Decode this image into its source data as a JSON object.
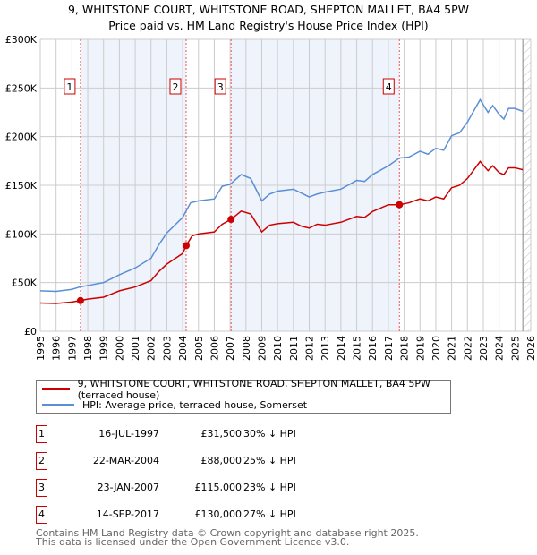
{
  "title_line1": "9, WHITSTONE COURT, WHITSTONE ROAD, SHEPTON MALLET, BA4 5PW",
  "title_line2": "Price paid vs. HM Land Registry's House Price Index (HPI)",
  "chart_data": {
    "type": "line",
    "xlim": [
      1995,
      2026
    ],
    "ylim": [
      0,
      300000
    ],
    "y_ticks": [
      {
        "v": 0,
        "label": "£0"
      },
      {
        "v": 50000,
        "label": "£50K"
      },
      {
        "v": 100000,
        "label": "£100K"
      },
      {
        "v": 150000,
        "label": "£150K"
      },
      {
        "v": 200000,
        "label": "£200K"
      },
      {
        "v": 250000,
        "label": "£250K"
      },
      {
        "v": 300000,
        "label": "£300K"
      }
    ],
    "x_ticks": [
      "1995",
      "1996",
      "1997",
      "1998",
      "1999",
      "2000",
      "2001",
      "2002",
      "2003",
      "2004",
      "2005",
      "2006",
      "2007",
      "2008",
      "2009",
      "2010",
      "2011",
      "2012",
      "2013",
      "2014",
      "2015",
      "2016",
      "2017",
      "2018",
      "2019",
      "2020",
      "2021",
      "2022",
      "2023",
      "2024",
      "2025",
      "2026"
    ],
    "grid": true,
    "series": [
      {
        "name": "9, WHITSTONE COURT, WHITSTONE ROAD, SHEPTON MALLET, BA4 5PW (terraced house)",
        "color": "#cc0000",
        "x": [
          1995,
          1996,
          1997,
          1997.54,
          1998,
          1999,
          2000,
          2001,
          2002,
          2002.5,
          2003,
          2004,
          2004.22,
          2004.6,
          2005,
          2006,
          2006.5,
          2007.06,
          2007.7,
          2008.3,
          2009,
          2009.5,
          2010,
          2011,
          2011.5,
          2012,
          2012.5,
          2013,
          2014,
          2015,
          2015.5,
          2016,
          2017,
          2017.7,
          2018.3,
          2019,
          2019.5,
          2020,
          2020.5,
          2021,
          2021.5,
          2022,
          2022.8,
          2023.3,
          2023.6,
          2024,
          2024.3,
          2024.6,
          2025,
          2025.5
        ],
        "y": [
          29000,
          28500,
          30000,
          31500,
          33000,
          35000,
          41500,
          45500,
          52000,
          61500,
          69000,
          80000,
          88000,
          98000,
          100000,
          102000,
          110000,
          115000,
          123500,
          120500,
          102000,
          109000,
          110500,
          112000,
          108000,
          106000,
          110000,
          109000,
          112000,
          118000,
          117000,
          123000,
          130000,
          130000,
          132000,
          136000,
          134000,
          138000,
          136000,
          147500,
          150000,
          157000,
          174500,
          165000,
          170000,
          163000,
          161000,
          168000,
          168000,
          166000
        ]
      },
      {
        "name": "HPI: Average price, terraced house, Somerset",
        "color": "#5b8fd4",
        "x": [
          1995,
          1996,
          1997,
          1997.5,
          1998,
          1999,
          2000,
          2001,
          2002,
          2002.5,
          2003,
          2004,
          2004.5,
          2005,
          2006,
          2006.5,
          2007,
          2007.7,
          2008.3,
          2009,
          2009.5,
          2010,
          2011,
          2011.5,
          2012,
          2012.5,
          2013,
          2014,
          2015,
          2015.5,
          2016,
          2017,
          2017.7,
          2018.3,
          2019,
          2019.5,
          2020,
          2020.5,
          2021,
          2021.5,
          2022,
          2022.8,
          2023.3,
          2023.6,
          2024,
          2024.3,
          2024.6,
          2025,
          2025.5
        ],
        "y": [
          41500,
          41000,
          43000,
          45500,
          47000,
          50000,
          58000,
          65000,
          75000,
          89000,
          101000,
          117000,
          132000,
          134000,
          136000,
          149000,
          151000,
          161000,
          157000,
          134000,
          141000,
          144000,
          146000,
          142000,
          138000,
          141000,
          143000,
          146000,
          155000,
          154000,
          161000,
          170000,
          178000,
          179000,
          185000,
          182000,
          188000,
          186000,
          201000,
          204000,
          215000,
          238000,
          225000,
          232000,
          223000,
          218000,
          229000,
          229000,
          226000
        ]
      }
    ],
    "sales": [
      {
        "n": "1",
        "x": 1997.54,
        "date": "16-JUL-1997",
        "price": 31500,
        "price_label": "£31,500",
        "hpi": "30% ↓ HPI"
      },
      {
        "n": "2",
        "x": 2004.22,
        "date": "22-MAR-2004",
        "price": 88000,
        "price_label": "£88,000",
        "hpi": "25% ↓ HPI"
      },
      {
        "n": "3",
        "x": 2007.06,
        "date": "23-JAN-2007",
        "price": 115000,
        "price_label": "£115,000",
        "hpi": "23% ↓ HPI"
      },
      {
        "n": "4",
        "x": 2017.7,
        "date": "14-SEP-2017",
        "price": 130000,
        "price_label": "£130,000",
        "hpi": "27% ↓ HPI"
      }
    ],
    "shaded_ranges": [
      [
        1997.54,
        2004.22
      ],
      [
        2007.06,
        2017.7
      ]
    ],
    "hatched_from": 2025.5,
    "shade_color": "#eef3fc"
  },
  "footer_line1": "Contains HM Land Registry data © Crown copyright and database right 2025.",
  "footer_line2": "This data is licensed under the Open Government Licence v3.0."
}
